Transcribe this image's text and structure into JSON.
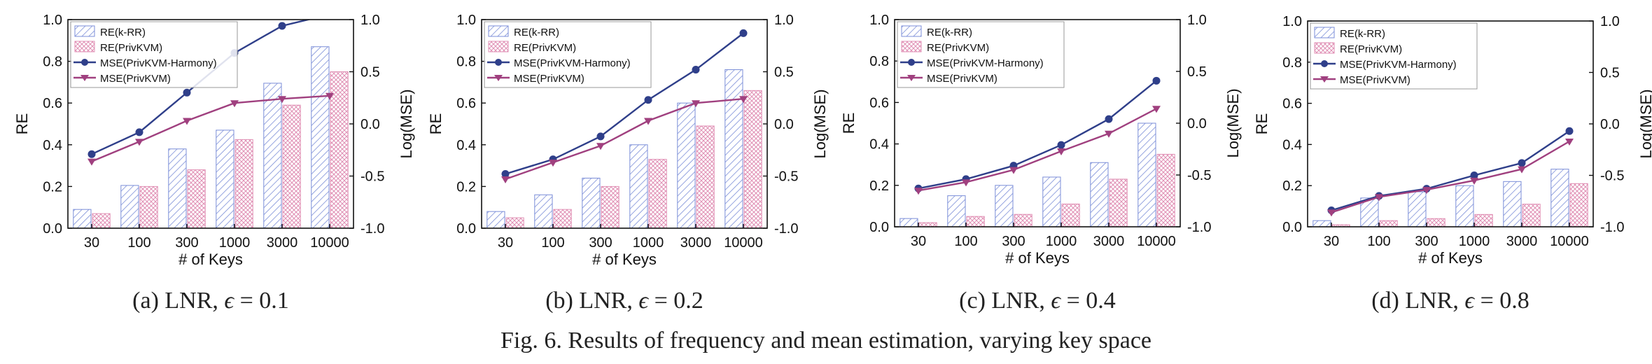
{
  "figure": {
    "caption": "Fig. 6.  Results of frequency and mean estimation, varying key space"
  },
  "colors": {
    "re_krr": "#7b8ed8",
    "re_privkvm": "#e08fb4",
    "mse_harmony": "#2f3f8a",
    "mse_privkvm": "#a0407f"
  },
  "chart_data": [
    {
      "type": "bar",
      "subtitle_prefix": "(a) LNR,",
      "epsilon_symbol": "ϵ",
      "epsilon_value": "= 0.1",
      "xlabel": "# of Keys",
      "ylabel": "RE",
      "y2label": "Log(MSE)",
      "categories": [
        "30",
        "100",
        "300",
        "1000",
        "3000",
        "10000"
      ],
      "ylim": [
        0,
        1.0
      ],
      "y2lim": [
        -1.0,
        1.0
      ],
      "yticks": [
        "0.0",
        "0.2",
        "0.4",
        "0.6",
        "0.8",
        "1.0"
      ],
      "y2ticks": [
        "-1.0",
        "-0.5",
        "0.0",
        "0.5",
        "1.0"
      ],
      "legend": [
        "RE(k-RR)",
        "RE(PrivKVM)",
        "MSE(PrivKVM-Harmony)",
        "MSE(PrivKVM)"
      ],
      "bars": [
        {
          "name": "RE(k-RR)",
          "values": [
            0.09,
            0.205,
            0.38,
            0.47,
            0.695,
            0.87
          ]
        },
        {
          "name": "RE(PrivKVM)",
          "values": [
            0.07,
            0.2,
            0.28,
            0.425,
            0.59,
            0.75
          ]
        }
      ],
      "lines": [
        {
          "name": "MSE(PrivKVM-Harmony)",
          "values": [
            -0.29,
            -0.08,
            0.3,
            0.68,
            0.94,
            1.05
          ]
        },
        {
          "name": "MSE(PrivKVM)",
          "values": [
            -0.36,
            -0.17,
            0.03,
            0.2,
            0.24,
            0.27
          ]
        }
      ]
    },
    {
      "type": "bar",
      "subtitle_prefix": "(b) LNR,",
      "epsilon_symbol": "ϵ",
      "epsilon_value": "= 0.2",
      "xlabel": "# of Keys",
      "ylabel": "RE",
      "y2label": "Log(MSE)",
      "categories": [
        "30",
        "100",
        "300",
        "1000",
        "3000",
        "10000"
      ],
      "ylim": [
        0,
        1.0
      ],
      "y2lim": [
        -1.0,
        1.0
      ],
      "yticks": [
        "0.0",
        "0.2",
        "0.4",
        "0.6",
        "0.8",
        "1.0"
      ],
      "y2ticks": [
        "-1.0",
        "-0.5",
        "0.0",
        "0.5",
        "1.0"
      ],
      "legend": [
        "RE(k-RR)",
        "RE(PrivKVM)",
        "MSE(PrivKVM-Harmony)",
        "MSE(PrivKVM)"
      ],
      "bars": [
        {
          "name": "RE(k-RR)",
          "values": [
            0.08,
            0.16,
            0.24,
            0.4,
            0.6,
            0.76
          ]
        },
        {
          "name": "RE(PrivKVM)",
          "values": [
            0.05,
            0.09,
            0.2,
            0.33,
            0.49,
            0.66
          ]
        }
      ],
      "lines": [
        {
          "name": "MSE(PrivKVM-Harmony)",
          "values": [
            -0.48,
            -0.34,
            -0.12,
            0.23,
            0.52,
            0.87
          ]
        },
        {
          "name": "MSE(PrivKVM)",
          "values": [
            -0.53,
            -0.37,
            -0.21,
            0.03,
            0.2,
            0.24
          ]
        }
      ]
    },
    {
      "type": "bar",
      "subtitle_prefix": "(c) LNR,",
      "epsilon_symbol": "ϵ",
      "epsilon_value": "= 0.4",
      "xlabel": "# of Keys",
      "ylabel": "RE",
      "y2label": "Log(MSE)",
      "categories": [
        "30",
        "100",
        "300",
        "1000",
        "3000",
        "10000"
      ],
      "ylim": [
        0,
        1.0
      ],
      "y2lim": [
        -1.0,
        1.0
      ],
      "yticks": [
        "0.0",
        "0.2",
        "0.4",
        "0.6",
        "0.8",
        "1.0"
      ],
      "y2ticks": [
        "-1.0",
        "-0.5",
        "0.0",
        "0.5",
        "1.0"
      ],
      "legend": [
        "RE(k-RR)",
        "RE(PrivKVM)",
        "MSE(PrivKVM-Harmony)",
        "MSE(PrivKVM)"
      ],
      "bars": [
        {
          "name": "RE(k-RR)",
          "values": [
            0.04,
            0.15,
            0.2,
            0.24,
            0.31,
            0.5
          ]
        },
        {
          "name": "RE(PrivKVM)",
          "values": [
            0.02,
            0.05,
            0.06,
            0.11,
            0.23,
            0.35
          ]
        }
      ],
      "lines": [
        {
          "name": "MSE(PrivKVM-Harmony)",
          "values": [
            -0.63,
            -0.54,
            -0.41,
            -0.21,
            0.04,
            0.41
          ]
        },
        {
          "name": "MSE(PrivKVM)",
          "values": [
            -0.65,
            -0.57,
            -0.45,
            -0.27,
            -0.1,
            0.14
          ]
        }
      ]
    },
    {
      "type": "bar",
      "subtitle_prefix": "(d) LNR,",
      "epsilon_symbol": "ϵ",
      "epsilon_value": "= 0.8",
      "xlabel": "# of Keys",
      "ylabel": "RE",
      "y2label": "Log(MSE)",
      "categories": [
        "30",
        "100",
        "300",
        "1000",
        "3000",
        "10000"
      ],
      "ylim": [
        0,
        1.0
      ],
      "y2lim": [
        -1.0,
        1.0
      ],
      "yticks": [
        "0.0",
        "0.2",
        "0.4",
        "0.6",
        "0.8",
        "1.0"
      ],
      "y2ticks": [
        "-1.0",
        "-0.5",
        "0.0",
        "0.5",
        "1.0"
      ],
      "legend": [
        "RE(k-RR)",
        "RE(PrivKVM)",
        "MSE(PrivKVM-Harmony)",
        "MSE(PrivKVM)"
      ],
      "bars": [
        {
          "name": "RE(k-RR)",
          "values": [
            0.03,
            0.14,
            0.17,
            0.2,
            0.22,
            0.28
          ]
        },
        {
          "name": "RE(PrivKVM)",
          "values": [
            0.01,
            0.03,
            0.04,
            0.06,
            0.11,
            0.21
          ]
        }
      ],
      "lines": [
        {
          "name": "MSE(PrivKVM-Harmony)",
          "values": [
            -0.84,
            -0.7,
            -0.63,
            -0.5,
            -0.38,
            -0.07
          ]
        },
        {
          "name": "MSE(PrivKVM)",
          "values": [
            -0.86,
            -0.71,
            -0.64,
            -0.55,
            -0.44,
            -0.17
          ]
        }
      ]
    }
  ]
}
